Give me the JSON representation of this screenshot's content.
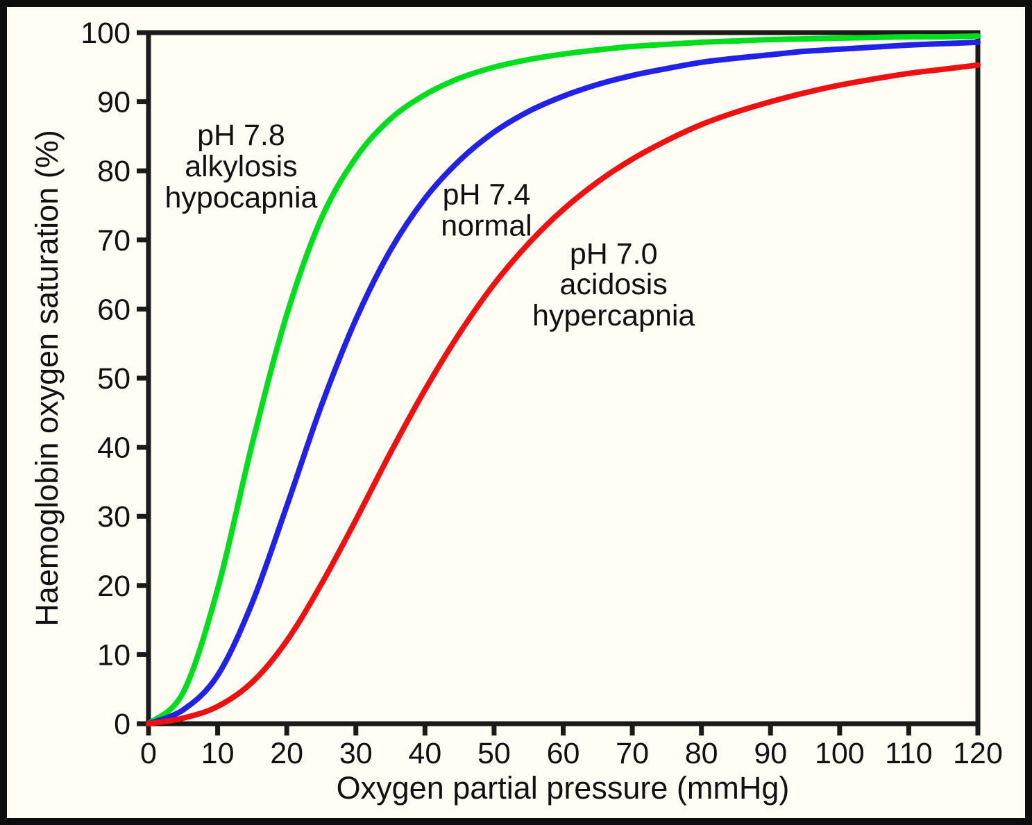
{
  "figure": {
    "background_color": "#fffdf4",
    "frame_color": "#0d0d0d",
    "axis_color": "#1a1a1a",
    "text_color": "#111111"
  },
  "chart_data": {
    "type": "line",
    "xlabel": "Oxygen partial pressure (mmHg)",
    "ylabel": "Haemoglobin oxygen saturation (%)",
    "xlim": [
      0,
      120
    ],
    "ylim": [
      0,
      100
    ],
    "x_ticks": [
      0,
      10,
      20,
      30,
      40,
      50,
      60,
      70,
      80,
      90,
      100,
      110,
      120
    ],
    "y_ticks": [
      0,
      10,
      20,
      30,
      40,
      50,
      60,
      70,
      80,
      90,
      100
    ],
    "grid": false,
    "legend_position": "none",
    "x": [
      0,
      5,
      10,
      15,
      20,
      25,
      30,
      35,
      40,
      45,
      50,
      55,
      60,
      65,
      70,
      75,
      80,
      85,
      90,
      95,
      100,
      105,
      110,
      115,
      120
    ],
    "series": [
      {
        "name": "pH 7.8 alkylosis hypocapnia",
        "color": "#00dd1e",
        "values": [
          0,
          4.5,
          19.5,
          40.5,
          59.2,
          73.1,
          81.9,
          87.5,
          91.0,
          93.4,
          95.0,
          96.1,
          96.9,
          97.5,
          98.0,
          98.3,
          98.6,
          98.8,
          99.0,
          99.1,
          99.2,
          99.3,
          99.4,
          99.4,
          99.5
        ]
      },
      {
        "name": "pH 7.4 normal",
        "color": "#2222e6",
        "values": [
          0,
          2.0,
          7.0,
          17.5,
          31.5,
          46.0,
          58.5,
          68.5,
          76.0,
          81.5,
          85.6,
          88.6,
          90.8,
          92.5,
          93.8,
          94.8,
          95.7,
          96.3,
          96.8,
          97.3,
          97.6,
          97.9,
          98.2,
          98.4,
          98.6
        ]
      },
      {
        "name": "pH 7.0 acidosis hypercapnia",
        "color": "#ee1111",
        "values": [
          0,
          0.8,
          2.5,
          6.0,
          12.0,
          20.2,
          29.5,
          39.2,
          48.3,
          56.5,
          63.6,
          69.5,
          74.4,
          78.4,
          81.7,
          84.4,
          86.7,
          88.5,
          90.0,
          91.3,
          92.4,
          93.3,
          94.1,
          94.7,
          95.3
        ]
      }
    ],
    "annotations": [
      {
        "x": 13.4,
        "y": 80.6,
        "lines": [
          "pH 7.8",
          "alkylosis",
          "hypocapnia"
        ]
      },
      {
        "x": 48.9,
        "y": 74.3,
        "lines": [
          "pH 7.4",
          "normal"
        ]
      },
      {
        "x": 67.3,
        "y": 63.5,
        "lines": [
          "pH 7.0",
          "acidosis",
          "hypercapnia"
        ]
      }
    ]
  }
}
